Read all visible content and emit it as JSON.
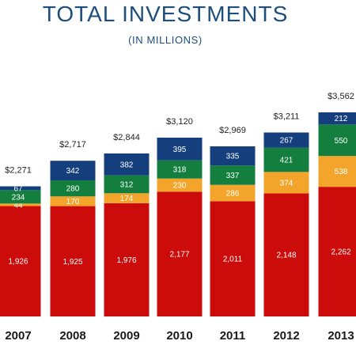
{
  "chart_data": {
    "type": "bar",
    "stacked": true,
    "title": "TOTAL INVESTMENTS",
    "subtitle": "(IN MILLIONS)",
    "categories": [
      "2007",
      "2008",
      "2009",
      "2010",
      "2011",
      "2012",
      "2013"
    ],
    "totals": [
      "$2,271",
      "$2,717",
      "$2,844",
      "$3,120",
      "$2,969",
      "$3,211",
      "$3,562"
    ],
    "series": [
      {
        "color": "#cc0b0b",
        "label_color": "#ffffff",
        "values": [
          1926,
          1925,
          1976,
          2177,
          2011,
          2148,
          2262
        ],
        "labels": [
          "1,926",
          "1,925",
          "1,976",
          "2,177",
          "2,011",
          "2,148",
          "2,262"
        ]
      },
      {
        "color": "#f3a52b",
        "label_color": "#ffffff",
        "values": [
          44,
          170,
          174,
          230,
          286,
          374,
          538
        ],
        "labels": [
          "44",
          "170",
          "174",
          "230",
          "286",
          "374",
          "538"
        ]
      },
      {
        "color": "#137e3e",
        "label_color": "#ffffff",
        "values": [
          234,
          280,
          312,
          318,
          337,
          421,
          550
        ],
        "labels": [
          "234",
          "280",
          "312",
          "318",
          "337",
          "421",
          "550"
        ]
      },
      {
        "color": "#143f7c",
        "label_color": "#ffffff",
        "values": [
          67,
          342,
          382,
          395,
          335,
          267,
          212
        ],
        "labels": [
          "67",
          "342",
          "382",
          "395",
          "335",
          "267",
          "212"
        ]
      }
    ],
    "ylim": [
      0,
      3700
    ],
    "grid": false,
    "legend": "none"
  }
}
